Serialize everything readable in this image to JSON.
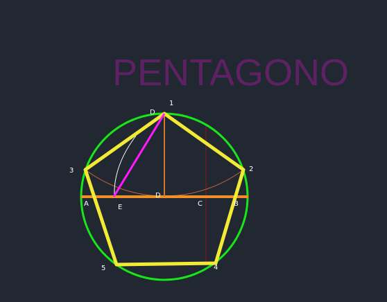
{
  "title": "PENTAGONO",
  "colors": {
    "background": "#222831",
    "title": "#5e2164",
    "circle": "#19e619",
    "pentagon": "#f3ea36",
    "diameter": "#f0902a",
    "vertical_center_line": "#d2782a",
    "arc_construction": "#c0623a",
    "magenta_chord": "#ff1aff",
    "white_arc": "#ffffff",
    "dark_red_line": "#8b1a1a"
  },
  "labels": {
    "v1": "1",
    "v2": "2",
    "v3": "3",
    "v4": "4",
    "v5": "5",
    "top_d": "D",
    "a": "A",
    "b": "B",
    "c": "C",
    "d": "D",
    "e": "E"
  }
}
